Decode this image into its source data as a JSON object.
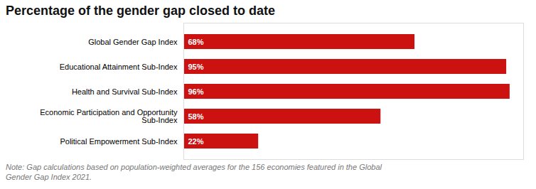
{
  "chart_data": {
    "type": "bar",
    "orientation": "horizontal",
    "title": "Percentage of the gender gap closed to date",
    "note": "Note: Gap calculations based on population-weighted averages for the 156 economies featured in the Global\nGender Gap Index 2021.",
    "categories": [
      "Global Gender Gap Index",
      "Educational Attainment Sub-Index",
      "Health and Survival Sub-Index",
      "Economic Participation and Opportunity\nSub-Index",
      "Political Empowerment Sub-Index"
    ],
    "values": [
      68,
      95,
      96,
      58,
      22
    ],
    "value_labels": [
      "68%",
      "95%",
      "96%",
      "58%",
      "22%"
    ],
    "data_labels": true,
    "color": "#cc1111",
    "xlim": [
      0,
      100
    ],
    "tick_labels": "y",
    "grid": false
  }
}
